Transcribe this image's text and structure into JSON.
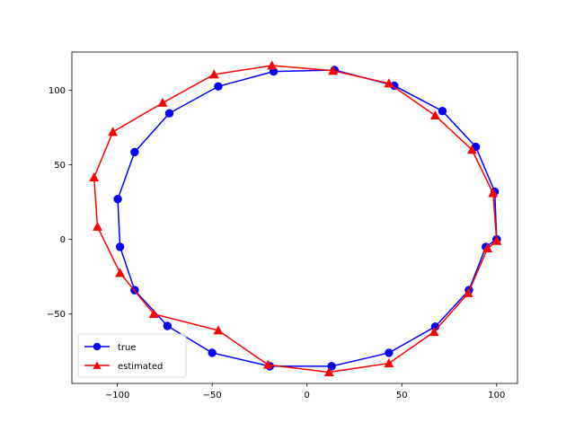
{
  "chart_data": {
    "type": "line",
    "title": "",
    "xlabel": "",
    "ylabel": "",
    "xlim": [
      -124.0,
      111.0
    ],
    "ylim": [
      -96.5,
      125.5
    ],
    "x_ticks": [
      -100,
      -50,
      0,
      50,
      100
    ],
    "y_ticks": [
      -50,
      0,
      50,
      100
    ],
    "x_tick_labels": [
      "−100",
      "−50",
      "0",
      "50",
      "100"
    ],
    "y_tick_labels": [
      "−50",
      "0",
      "50",
      "100"
    ],
    "grid": false,
    "legend_position": "lower-left",
    "series": [
      {
        "name": "true",
        "color": "#0000ff",
        "marker": "circle",
        "points": [
          [
            100,
            0
          ],
          [
            94.3,
            -5
          ],
          [
            85.4,
            -34
          ],
          [
            67.6,
            -58.5
          ],
          [
            43.2,
            -76
          ],
          [
            13,
            -85
          ],
          [
            -19.6,
            -85
          ],
          [
            -50,
            -76
          ],
          [
            -73.6,
            -58
          ],
          [
            -90.9,
            -34
          ],
          [
            -98.6,
            -5
          ],
          [
            -99.8,
            27
          ],
          [
            -90.9,
            58.5
          ],
          [
            -72.6,
            84.5
          ],
          [
            -46.8,
            102.5
          ],
          [
            -17.6,
            112.5
          ],
          [
            14.5,
            113.5
          ],
          [
            46,
            103
          ],
          [
            71.4,
            86
          ],
          [
            89,
            62
          ],
          [
            99,
            32
          ],
          [
            100,
            0
          ]
        ]
      },
      {
        "name": "estimated",
        "color": "#ff0000",
        "marker": "triangle",
        "points": [
          [
            100,
            -1
          ],
          [
            95.2,
            -6
          ],
          [
            85,
            -36
          ],
          [
            67,
            -62
          ],
          [
            43.2,
            -83
          ],
          [
            11.6,
            -89
          ],
          [
            -20.6,
            -84
          ],
          [
            -46.8,
            -61
          ],
          [
            -80.8,
            -50
          ],
          [
            -98.6,
            -22.5
          ],
          [
            -110.5,
            8.5
          ],
          [
            -112.3,
            41.5
          ],
          [
            -102.4,
            72
          ],
          [
            -76.1,
            91.5
          ],
          [
            -49,
            110.5
          ],
          [
            -18.5,
            116.5
          ],
          [
            13.7,
            113
          ],
          [
            43.2,
            104.5
          ],
          [
            67.6,
            83
          ],
          [
            87,
            60
          ],
          [
            98.1,
            31
          ],
          [
            100,
            -1
          ]
        ]
      }
    ]
  }
}
